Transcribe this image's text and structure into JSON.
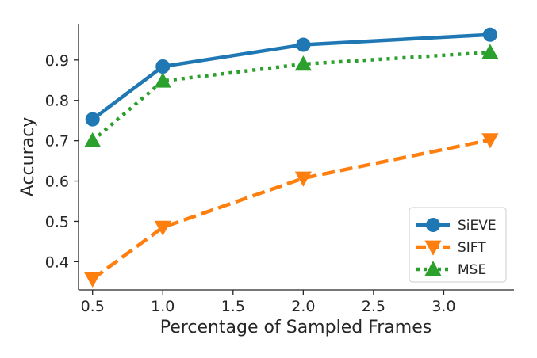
{
  "chart_data": {
    "type": "line",
    "xlabel": "Percentage of Sampled Frames",
    "ylabel": "Accuracy",
    "xlim": [
      0.4,
      3.5
    ],
    "ylim": [
      0.33,
      0.99
    ],
    "xticks": [
      0.5,
      1.0,
      1.5,
      2.0,
      2.5,
      3.0
    ],
    "xtick_labels": [
      "0.5",
      "1.0",
      "1.5",
      "2.0",
      "2.5",
      "3.0"
    ],
    "yticks": [
      0.4,
      0.5,
      0.6,
      0.7,
      0.8,
      0.9
    ],
    "ytick_labels": [
      "0.4",
      "0.5",
      "0.6",
      "0.7",
      "0.8",
      "0.9"
    ],
    "grid": false,
    "legend_position": "bottom-right",
    "series": [
      {
        "name": "SiEVE",
        "x": [
          0.5,
          1.0,
          2.0,
          3.33
        ],
        "values": [
          0.753,
          0.884,
          0.938,
          0.963
        ],
        "color": "#1f77b4",
        "line_style": "solid",
        "marker": "circle"
      },
      {
        "name": "SIFT",
        "x": [
          0.5,
          1.0,
          2.0,
          3.33
        ],
        "values": [
          0.357,
          0.485,
          0.607,
          0.702
        ],
        "color": "#ff7f0e",
        "line_style": "dashed",
        "marker": "triangle-down"
      },
      {
        "name": "MSE",
        "x": [
          0.5,
          1.0,
          2.0,
          3.33
        ],
        "values": [
          0.7,
          0.848,
          0.89,
          0.919
        ],
        "color": "#2ca02c",
        "line_style": "dotted",
        "marker": "triangle-up"
      }
    ]
  }
}
